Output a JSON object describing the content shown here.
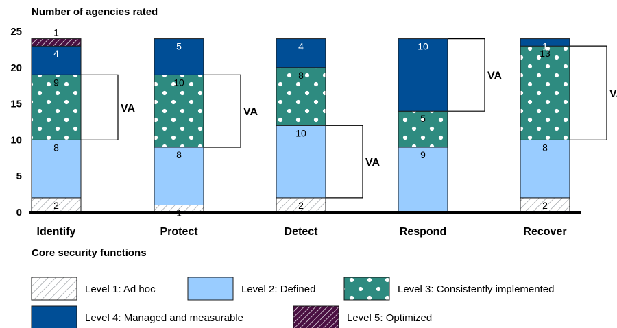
{
  "chart_data": {
    "type": "bar",
    "stacked": true,
    "ylabel": "Number of agencies rated",
    "xlabel": "Core security functions",
    "ylim": [
      0,
      25
    ],
    "yticks": [
      0,
      5,
      10,
      15,
      20,
      25
    ],
    "categories": [
      "Identify",
      "Protect",
      "Detect",
      "Respond",
      "Recover"
    ],
    "series": [
      {
        "name": "Level 1: Ad hoc",
        "values": [
          2,
          1,
          2,
          0,
          2
        ],
        "color": "#ffffff",
        "pattern": "hatch-light"
      },
      {
        "name": "Level 2: Defined",
        "values": [
          8,
          8,
          10,
          9,
          8
        ],
        "color": "#99ccff",
        "pattern": "none"
      },
      {
        "name": "Level 3: Consistently implemented",
        "values": [
          9,
          10,
          8,
          5,
          13
        ],
        "color": "#2e8b80",
        "pattern": "dots"
      },
      {
        "name": "Level 4: Managed and measurable",
        "values": [
          4,
          5,
          4,
          10,
          1
        ],
        "color": "#004e96",
        "pattern": "none"
      },
      {
        "name": "Level 5: Optimized",
        "values": [
          1,
          0,
          0,
          0,
          0
        ],
        "color": "#4a1042",
        "pattern": "hatch-dark"
      }
    ],
    "annotations": [
      {
        "category": "Identify",
        "label": "VA",
        "from": 10,
        "to": 19
      },
      {
        "category": "Protect",
        "label": "VA",
        "from": 9,
        "to": 19
      },
      {
        "category": "Detect",
        "label": "VA",
        "from": 2,
        "to": 12
      },
      {
        "category": "Respond",
        "label": "VA",
        "from": 14,
        "to": 24
      },
      {
        "category": "Recover",
        "label": "VA",
        "from": 10,
        "to": 23
      }
    ],
    "legend_position": "bottom"
  }
}
